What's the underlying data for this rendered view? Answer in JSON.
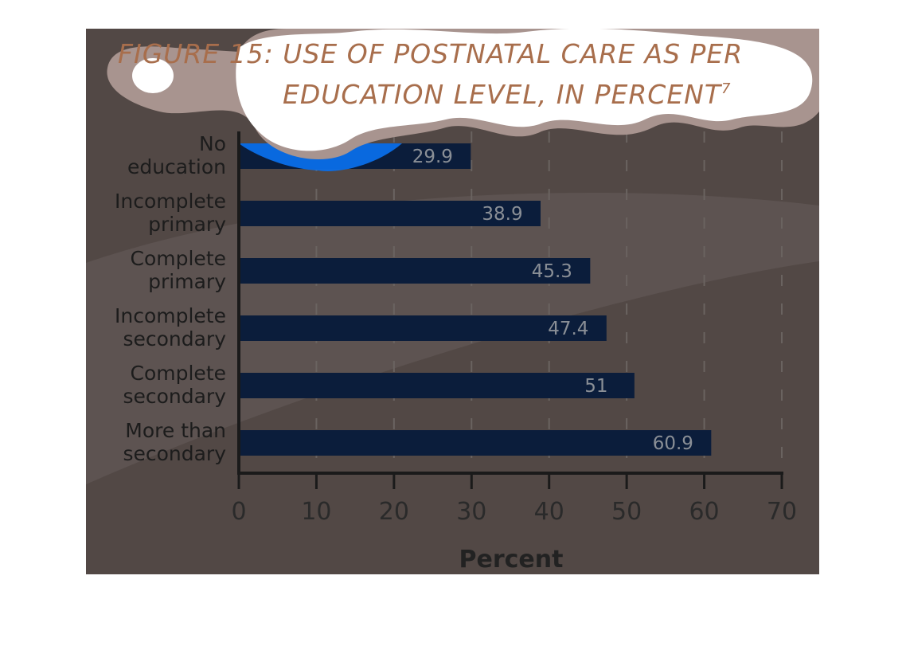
{
  "chart_data": {
    "type": "bar",
    "orientation": "horizontal",
    "title_lines": [
      "FIGURE 15: USE OF POSTNATAL CARE AS PER",
      "EDUCATION LEVEL, IN PERCENT"
    ],
    "title_superscript": "7",
    "categories": [
      [
        "No",
        "education"
      ],
      [
        "Incomplete",
        "primary"
      ],
      [
        "Complete",
        "primary"
      ],
      [
        "Incomplete",
        "secondary"
      ],
      [
        "Complete",
        "secondary"
      ],
      [
        "More than",
        "secondary"
      ]
    ],
    "values": [
      29.9,
      38.9,
      45.3,
      47.4,
      51,
      60.9
    ],
    "value_labels": [
      "29.9",
      "38.9",
      "45.3",
      "47.4",
      "51",
      "60.9"
    ],
    "xlabel": "Percent",
    "ylabel": "",
    "xlim": [
      0,
      70
    ],
    "xticks": [
      "0",
      "10",
      "20",
      "30",
      "40",
      "50",
      "60",
      "70"
    ],
    "grid": "vertical dashed",
    "colors": {
      "background": "#524845",
      "bar": "#0b1d3b",
      "highlight_bar": "#0a6ee8",
      "title": "#a86e4c",
      "cloud_fill": "#ffffff",
      "cloud_border": "#a8948f"
    }
  }
}
